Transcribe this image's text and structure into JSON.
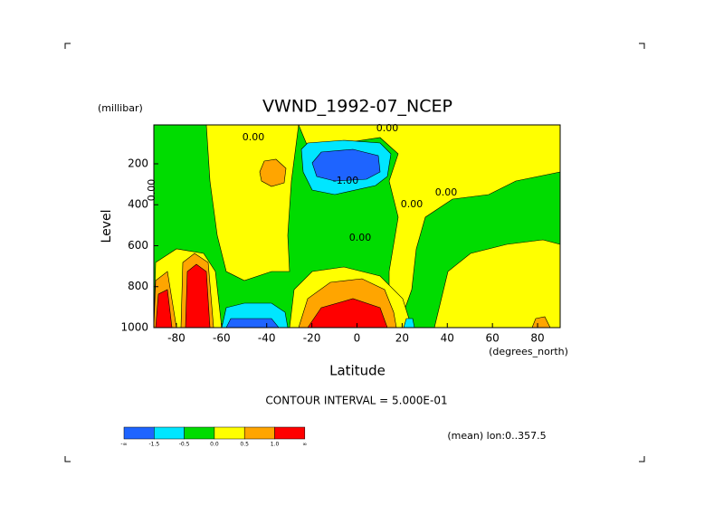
{
  "chart_data": {
    "type": "contour",
    "title": "VWND_1992-07_NCEP",
    "y_unit": "(millibar)",
    "y_label": "Level",
    "x_label": "Latitude",
    "x_unit": "(degrees_north)",
    "xlim": [
      -90,
      90
    ],
    "xticks": [
      -80,
      -60,
      -40,
      -20,
      0,
      20,
      40,
      60,
      80
    ],
    "ylim": [
      1000,
      10
    ],
    "yticks": [
      200,
      400,
      600,
      800,
      1000
    ],
    "contour_note": "CONTOUR INTERVAL = 5.000E-01",
    "footnote": "(mean) lon:0..357.5",
    "annotations": [
      "0.00",
      "0.00",
      "-1.00",
      "0.00",
      "0.00",
      "0.00",
      "0.00"
    ],
    "colorbar": {
      "colors": [
        "#1e64ff",
        "#00e6ff",
        "#00dc00",
        "#ffff00",
        "#ffa500",
        "#ff0000"
      ],
      "labels": [
        "-∞",
        "-1.5",
        "-0.5",
        "0.0",
        "0.5",
        "1.0",
        "∞"
      ]
    }
  }
}
